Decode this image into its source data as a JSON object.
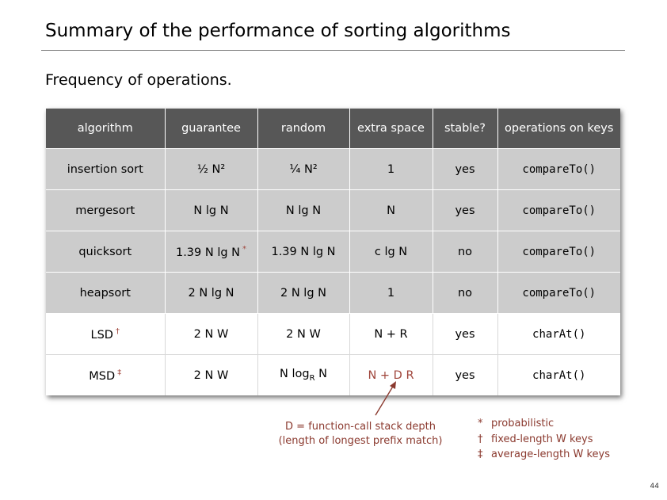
{
  "title": "Summary of the performance of sorting algorithms",
  "subtitle": "Frequency of operations.",
  "table": {
    "headers": [
      "algorithm",
      "guarantee",
      "random",
      "extra space",
      "stable?",
      "operations on keys"
    ],
    "rows": [
      {
        "algorithm": "insertion sort",
        "guarantee": "½ N²",
        "random": "¼ N²",
        "extra_space": "1",
        "stable": "yes",
        "ops": "compareTo()"
      },
      {
        "algorithm": "mergesort",
        "guarantee": "N lg N",
        "random": "N lg N",
        "extra_space": "N",
        "stable": "yes",
        "ops": "compareTo()"
      },
      {
        "algorithm": "quicksort",
        "guarantee": "1.39 N lg N",
        "guarantee_mark": "*",
        "random": "1.39 N lg N",
        "extra_space": "c lg N",
        "stable": "no",
        "ops": "compareTo()"
      },
      {
        "algorithm": "heapsort",
        "guarantee": "2 N lg N",
        "random": "2 N lg N",
        "extra_space": "1",
        "stable": "no",
        "ops": "compareTo()"
      },
      {
        "algorithm": "LSD",
        "algorithm_mark": "†",
        "guarantee": "2 N W",
        "random": "2 N W",
        "extra_space": "N + R",
        "stable": "yes",
        "ops": "charAt()"
      },
      {
        "algorithm": "MSD",
        "algorithm_mark": "‡",
        "guarantee": "2 N W",
        "random_pre": "N log",
        "random_sub": "R",
        "random_post": " N",
        "extra_space": "N + D R",
        "stable": "yes",
        "ops": "charAt()"
      }
    ]
  },
  "annotation": {
    "line1": "D = function-call stack depth",
    "line2": "(length of longest prefix match)"
  },
  "legend": [
    {
      "symbol": "*",
      "text": "probabilistic"
    },
    {
      "symbol": "†",
      "text": "fixed-length W keys"
    },
    {
      "symbol": "‡",
      "text": "average-length W keys"
    }
  ],
  "page_number": "44",
  "colors": {
    "header_bg": "#575757",
    "gray_row_bg": "#cccccc",
    "accent_red": "#a0463c"
  }
}
